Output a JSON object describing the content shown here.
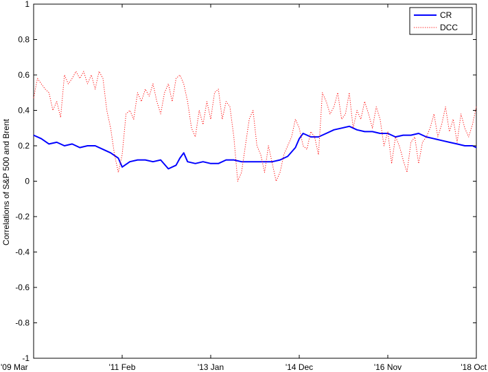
{
  "chart_data": {
    "type": "line",
    "title": "",
    "xlabel": "",
    "ylabel": "Correlations of S&P 500 and Brent",
    "ylim": [
      -1,
      1
    ],
    "yticks": [
      "-1",
      "-0.8",
      "-0.6",
      "-0.4",
      "-0.2",
      "0",
      "0.2",
      "0.4",
      "0.6",
      "0.8",
      "1"
    ],
    "yticks_values": [
      -1,
      -0.8,
      -0.6,
      -0.4,
      -0.2,
      0,
      0.2,
      0.4,
      0.6,
      0.8,
      1
    ],
    "xticks": [
      "'09 Mar",
      "'11 Feb",
      "'13 Jan",
      "'14 Dec",
      "'16 Nov",
      "'18 Oct"
    ],
    "xticks_values": [
      "2009-03",
      "2011-02",
      "2013-01",
      "2014-12",
      "2016-11",
      "2018-10"
    ],
    "xlim": [
      "2009-03",
      "2018-10"
    ],
    "grid": false,
    "legend_position": "top-right",
    "colors": {
      "CR": "#0000ff",
      "DCC": "#ff0000"
    },
    "series": [
      {
        "name": "CR",
        "style": "solid",
        "x": [
          "2009-03",
          "2009-05",
          "2009-07",
          "2009-09",
          "2009-11",
          "2010-01",
          "2010-03",
          "2010-05",
          "2010-07",
          "2010-09",
          "2010-11",
          "2011-01",
          "2011-02",
          "2011-04",
          "2011-06",
          "2011-08",
          "2011-10",
          "2011-12",
          "2012-02",
          "2012-04",
          "2012-05",
          "2012-06",
          "2012-07",
          "2012-09",
          "2012-11",
          "2013-01",
          "2013-03",
          "2013-05",
          "2013-07",
          "2013-09",
          "2013-11",
          "2014-01",
          "2014-03",
          "2014-05",
          "2014-07",
          "2014-09",
          "2014-11",
          "2014-12",
          "2015-01",
          "2015-03",
          "2015-05",
          "2015-07",
          "2015-09",
          "2015-11",
          "2016-01",
          "2016-03",
          "2016-05",
          "2016-07",
          "2016-09",
          "2016-11",
          "2017-01",
          "2017-03",
          "2017-05",
          "2017-07",
          "2017-09",
          "2017-11",
          "2018-01",
          "2018-03",
          "2018-05",
          "2018-07",
          "2018-09",
          "2018-10"
        ],
        "values": [
          0.26,
          0.24,
          0.21,
          0.22,
          0.2,
          0.21,
          0.19,
          0.2,
          0.2,
          0.18,
          0.16,
          0.13,
          0.08,
          0.11,
          0.12,
          0.12,
          0.11,
          0.12,
          0.07,
          0.09,
          0.13,
          0.16,
          0.11,
          0.1,
          0.11,
          0.1,
          0.1,
          0.12,
          0.12,
          0.11,
          0.11,
          0.11,
          0.11,
          0.11,
          0.12,
          0.14,
          0.19,
          0.24,
          0.27,
          0.25,
          0.25,
          0.27,
          0.29,
          0.3,
          0.31,
          0.29,
          0.28,
          0.28,
          0.27,
          0.27,
          0.25,
          0.26,
          0.26,
          0.27,
          0.25,
          0.24,
          0.23,
          0.22,
          0.21,
          0.2,
          0.2,
          0.19
        ]
      },
      {
        "name": "DCC",
        "style": "dotted",
        "x": [
          "2009-03",
          "2009-04",
          "2009-05",
          "2009-06",
          "2009-07",
          "2009-08",
          "2009-09",
          "2009-10",
          "2009-11",
          "2009-12",
          "2010-01",
          "2010-02",
          "2010-03",
          "2010-04",
          "2010-05",
          "2010-06",
          "2010-07",
          "2010-08",
          "2010-09",
          "2010-10",
          "2010-11",
          "2010-12",
          "2011-01",
          "2011-02",
          "2011-03",
          "2011-04",
          "2011-05",
          "2011-06",
          "2011-07",
          "2011-08",
          "2011-09",
          "2011-10",
          "2011-11",
          "2011-12",
          "2012-01",
          "2012-02",
          "2012-03",
          "2012-04",
          "2012-05",
          "2012-06",
          "2012-07",
          "2012-08",
          "2012-09",
          "2012-10",
          "2012-11",
          "2012-12",
          "2013-01",
          "2013-02",
          "2013-03",
          "2013-04",
          "2013-05",
          "2013-06",
          "2013-07",
          "2013-08",
          "2013-09",
          "2013-10",
          "2013-11",
          "2013-12",
          "2014-01",
          "2014-02",
          "2014-03",
          "2014-04",
          "2014-05",
          "2014-06",
          "2014-07",
          "2014-08",
          "2014-09",
          "2014-10",
          "2014-11",
          "2014-12",
          "2015-01",
          "2015-02",
          "2015-03",
          "2015-04",
          "2015-05",
          "2015-06",
          "2015-07",
          "2015-08",
          "2015-09",
          "2015-10",
          "2015-11",
          "2015-12",
          "2016-01",
          "2016-02",
          "2016-03",
          "2016-04",
          "2016-05",
          "2016-06",
          "2016-07",
          "2016-08",
          "2016-09",
          "2016-10",
          "2016-11",
          "2016-12",
          "2017-01",
          "2017-02",
          "2017-03",
          "2017-04",
          "2017-05",
          "2017-06",
          "2017-07",
          "2017-08",
          "2017-09",
          "2017-10",
          "2017-11",
          "2017-12",
          "2018-01",
          "2018-02",
          "2018-03",
          "2018-04",
          "2018-05",
          "2018-06",
          "2018-07",
          "2018-08",
          "2018-09",
          "2018-10"
        ],
        "values": [
          0.47,
          0.58,
          0.55,
          0.52,
          0.5,
          0.4,
          0.45,
          0.36,
          0.6,
          0.55,
          0.58,
          0.62,
          0.58,
          0.62,
          0.55,
          0.6,
          0.52,
          0.62,
          0.58,
          0.4,
          0.3,
          0.15,
          0.05,
          0.15,
          0.38,
          0.4,
          0.35,
          0.5,
          0.45,
          0.52,
          0.48,
          0.55,
          0.45,
          0.38,
          0.5,
          0.55,
          0.45,
          0.58,
          0.6,
          0.55,
          0.45,
          0.3,
          0.25,
          0.4,
          0.32,
          0.45,
          0.35,
          0.5,
          0.52,
          0.35,
          0.45,
          0.42,
          0.25,
          0.0,
          0.05,
          0.2,
          0.35,
          0.4,
          0.2,
          0.15,
          0.05,
          0.2,
          0.1,
          0.0,
          0.05,
          0.15,
          0.2,
          0.25,
          0.35,
          0.3,
          0.2,
          0.18,
          0.28,
          0.25,
          0.15,
          0.5,
          0.45,
          0.38,
          0.42,
          0.5,
          0.35,
          0.38,
          0.5,
          0.3,
          0.4,
          0.35,
          0.45,
          0.38,
          0.3,
          0.42,
          0.35,
          0.2,
          0.28,
          0.1,
          0.25,
          0.2,
          0.12,
          0.05,
          0.22,
          0.25,
          0.1,
          0.22,
          0.25,
          0.3,
          0.38,
          0.25,
          0.32,
          0.42,
          0.28,
          0.35,
          0.22,
          0.38,
          0.3,
          0.25,
          0.32,
          0.42
        ]
      }
    ]
  }
}
